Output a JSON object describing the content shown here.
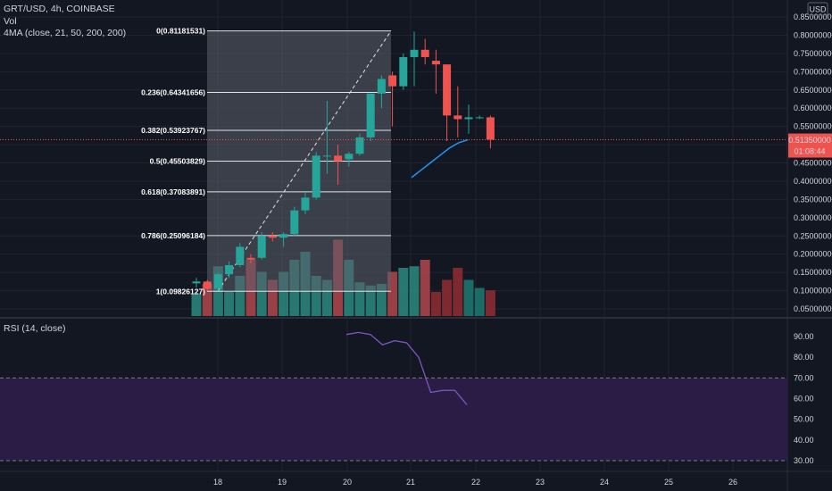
{
  "header": {
    "symbol": "GRT/USD, 4h, COINBASE",
    "vol_label": "Vol",
    "ma_label": "4MA (close, 21, 50, 200, 200)",
    "currency": "USD"
  },
  "rsi": {
    "label": "RSI (14, close)",
    "ticks": [
      "90.00",
      "80.00",
      "70.00",
      "60.00",
      "50.00",
      "40.00",
      "30.00"
    ],
    "upper": 70,
    "lower": 30,
    "line_color": "#7e57c2"
  },
  "price_badge": {
    "value": "0.51350000",
    "countdown": "01:08:44",
    "color": "#ef5350"
  },
  "colors": {
    "up": "#26a69a",
    "down": "#ef5350",
    "background": "#131722",
    "grid": "#1f2330",
    "text": "#d1d4dc",
    "fib_fill": "#5d606b",
    "ma": "#2196f3",
    "rsi_band": "#2a1c45"
  },
  "chart_data": {
    "type": "candlestick",
    "price_axis_ticks": [
      "0.85000000",
      "0.80000000",
      "0.75000000",
      "0.70000000",
      "0.65000000",
      "0.60000000",
      "0.55000000",
      "0.50000000",
      "0.45000000",
      "0.40000000",
      "0.35000000",
      "0.30000000",
      "0.25000000",
      "0.20000000",
      "0.15000000",
      "0.10000000",
      "0.05000000"
    ],
    "ylim": [
      0.03,
      0.86
    ],
    "x_ticks": [
      "18",
      "19",
      "20",
      "21",
      "22",
      "23",
      "24",
      "25",
      "26"
    ],
    "fib_levels": [
      {
        "label": "0(0.81181531)",
        "value": 0.81181531
      },
      {
        "label": "0.236(0.64341656)",
        "value": 0.64341656
      },
      {
        "label": "0.382(0.53923767)",
        "value": 0.53923767
      },
      {
        "label": "0.5(0.45503829)",
        "value": 0.45503829
      },
      {
        "label": "0.618(0.37083891)",
        "value": 0.37083891
      },
      {
        "label": "0.786(0.25096184)",
        "value": 0.25096184
      },
      {
        "label": "1(0.09826127)",
        "value": 0.09826127
      }
    ],
    "candles": [
      {
        "o": 0.12,
        "h": 0.135,
        "l": 0.108,
        "c": 0.125
      },
      {
        "o": 0.125,
        "h": 0.13,
        "l": 0.1,
        "c": 0.105
      },
      {
        "o": 0.105,
        "h": 0.15,
        "l": 0.1,
        "c": 0.145
      },
      {
        "o": 0.145,
        "h": 0.18,
        "l": 0.135,
        "c": 0.17
      },
      {
        "o": 0.17,
        "h": 0.23,
        "l": 0.165,
        "c": 0.22
      },
      {
        "o": 0.19,
        "h": 0.2,
        "l": 0.175,
        "c": 0.185
      },
      {
        "o": 0.19,
        "h": 0.26,
        "l": 0.185,
        "c": 0.25
      },
      {
        "o": 0.25,
        "h": 0.26,
        "l": 0.235,
        "c": 0.245
      },
      {
        "o": 0.245,
        "h": 0.26,
        "l": 0.22,
        "c": 0.255
      },
      {
        "o": 0.255,
        "h": 0.33,
        "l": 0.25,
        "c": 0.32
      },
      {
        "o": 0.32,
        "h": 0.37,
        "l": 0.31,
        "c": 0.355
      },
      {
        "o": 0.355,
        "h": 0.48,
        "l": 0.35,
        "c": 0.47
      },
      {
        "o": 0.47,
        "h": 0.62,
        "l": 0.42,
        "c": 0.47
      },
      {
        "o": 0.47,
        "h": 0.5,
        "l": 0.39,
        "c": 0.455
      },
      {
        "o": 0.46,
        "h": 0.48,
        "l": 0.44,
        "c": 0.475
      },
      {
        "o": 0.475,
        "h": 0.53,
        "l": 0.47,
        "c": 0.52
      },
      {
        "o": 0.52,
        "h": 0.64,
        "l": 0.51,
        "c": 0.64
      },
      {
        "o": 0.64,
        "h": 0.69,
        "l": 0.6,
        "c": 0.68
      },
      {
        "o": 0.69,
        "h": 0.7,
        "l": 0.55,
        "c": 0.66
      },
      {
        "o": 0.66,
        "h": 0.75,
        "l": 0.65,
        "c": 0.74
      },
      {
        "o": 0.74,
        "h": 0.81,
        "l": 0.66,
        "c": 0.76
      },
      {
        "o": 0.76,
        "h": 0.79,
        "l": 0.72,
        "c": 0.74
      },
      {
        "o": 0.73,
        "h": 0.76,
        "l": 0.64,
        "c": 0.72
      },
      {
        "o": 0.72,
        "h": 0.72,
        "l": 0.51,
        "c": 0.58
      },
      {
        "o": 0.58,
        "h": 0.66,
        "l": 0.52,
        "c": 0.57
      },
      {
        "o": 0.57,
        "h": 0.61,
        "l": 0.53,
        "c": 0.575
      },
      {
        "o": 0.575,
        "h": 0.58,
        "l": 0.57,
        "c": 0.575
      },
      {
        "o": 0.575,
        "h": 0.58,
        "l": 0.49,
        "c": 0.5135
      }
    ],
    "volumes": [
      0.28,
      0.4,
      0.62,
      0.3,
      0.5,
      0.7,
      0.55,
      0.45,
      0.55,
      0.7,
      0.8,
      0.5,
      0.45,
      0.95,
      0.7,
      0.42,
      0.38,
      0.4,
      0.55,
      0.6,
      0.62,
      0.7,
      0.3,
      0.45,
      0.6,
      0.45,
      0.35,
      0.32
    ],
    "ma_line": [
      0.41,
      0.43,
      0.45,
      0.47,
      0.49,
      0.505,
      0.5135
    ],
    "rsi_values": [
      91,
      92,
      91,
      86,
      88,
      87,
      80,
      63,
      64,
      64,
      57
    ]
  }
}
